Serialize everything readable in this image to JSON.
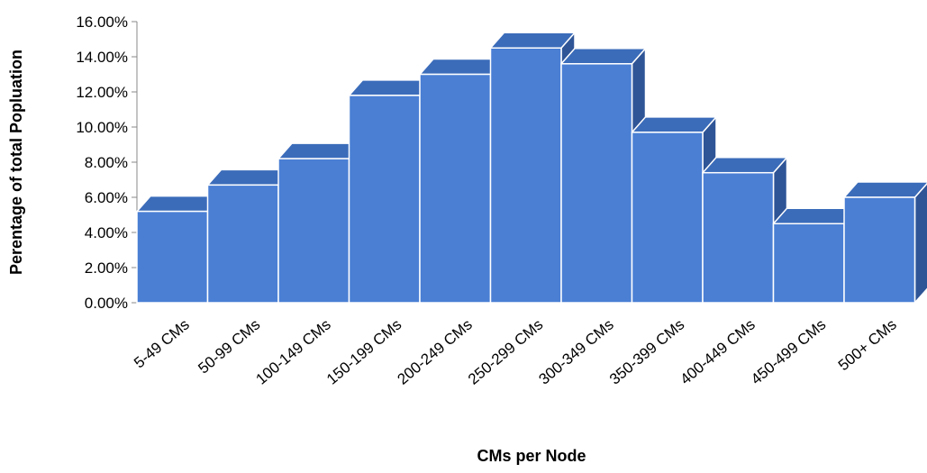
{
  "chart_data": {
    "type": "bar",
    "style": "3d-column",
    "title": "",
    "xlabel": "CMs per Node",
    "ylabel": "Perentage of total Popluation",
    "categories": [
      "5-49 CMs",
      "50-99 CMs",
      "100-149 CMs",
      "150-199 CMs",
      "200-249 CMs",
      "250-299 CMs",
      "300-349 CMs",
      "350-399 CMs",
      "400-449 CMs",
      "450-499 CMs",
      "500+ CMs"
    ],
    "values": [
      5.2,
      6.7,
      8.2,
      11.8,
      13.0,
      14.5,
      13.6,
      9.7,
      7.4,
      4.5,
      6.0
    ],
    "ylim": [
      0,
      16
    ],
    "yticks": [
      0,
      2,
      4,
      6,
      8,
      10,
      12,
      14,
      16
    ],
    "ytick_labels": [
      "0.00%",
      "2.00%",
      "4.00%",
      "6.00%",
      "8.00%",
      "10.00%",
      "12.00%",
      "14.00%",
      "16.00%"
    ],
    "grid": false,
    "legend": "none",
    "colors": {
      "front": "#4a7fd4",
      "top": "#3b6cba",
      "side": "#2f5597",
      "edge": "#ffffff"
    }
  }
}
